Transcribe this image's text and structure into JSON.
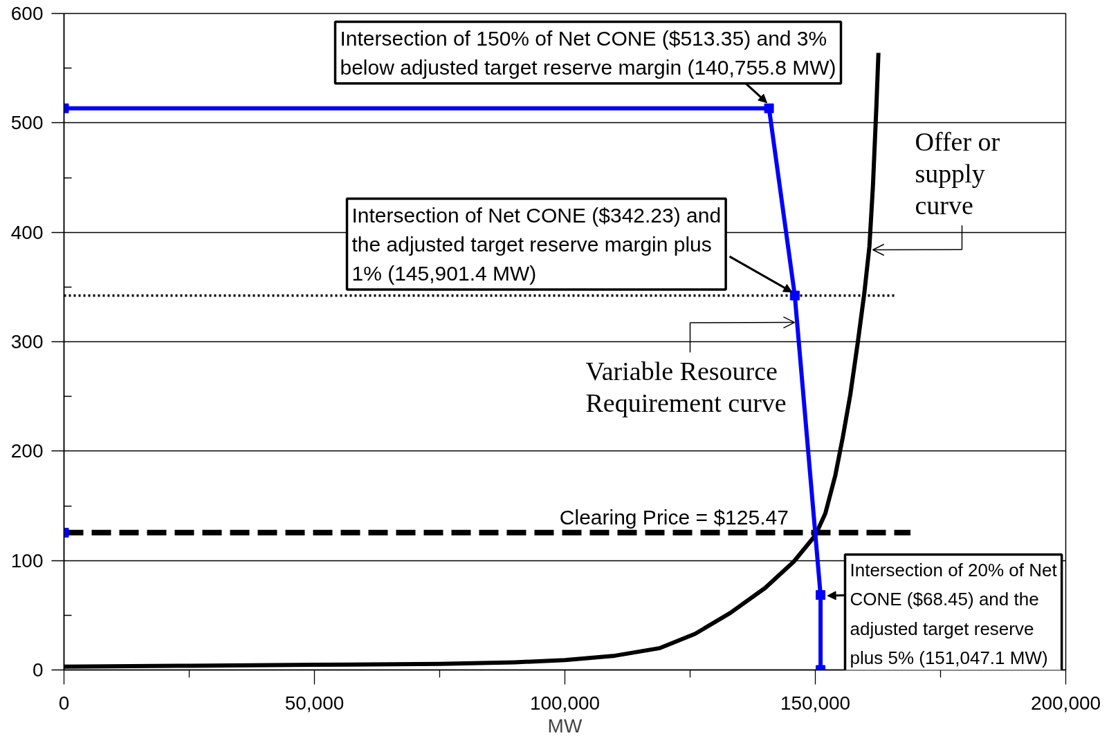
{
  "chart_data": {
    "type": "line",
    "xlabel": "MW",
    "xlim": [
      0,
      200000
    ],
    "xticks": [
      0,
      {
        "value": 25000,
        "label": null
      },
      {
        "value": 50000,
        "label": "50,000"
      },
      {
        "value": 75000,
        "label": null
      },
      {
        "value": 100000,
        "label": "100,000"
      },
      {
        "value": 125000,
        "label": null
      },
      {
        "value": 150000,
        "label": "150,000"
      },
      {
        "value": 175000,
        "label": null
      },
      {
        "value": 200000,
        "label": "200,000"
      }
    ],
    "ylim": [
      0,
      600
    ],
    "yticks": [
      0,
      {
        "value": 50,
        "label": null
      },
      100,
      {
        "value": 150,
        "label": null
      },
      200,
      {
        "value": 250,
        "label": null
      },
      300,
      {
        "value": 350,
        "label": null
      },
      400,
      {
        "value": 450,
        "label": null
      },
      500,
      {
        "value": 550,
        "label": null
      },
      600
    ],
    "grid": "y",
    "series": [
      {
        "color": "#000000",
        "line_style": "dotted",
        "x": [
          0,
          166000
        ],
        "values": [
          342.23,
          342.23
        ]
      },
      {
        "color": "#000000",
        "line_style": "dashed",
        "x": [
          0,
          169000
        ],
        "values": [
          125.47,
          125.47
        ]
      },
      {
        "color": "#000000",
        "x": [
          0,
          25000,
          50000,
          75000,
          90000,
          100000,
          110000,
          119000,
          126000,
          133000,
          140000,
          145700,
          150000,
          152000,
          154000,
          155500,
          157000,
          158500,
          159800,
          160800,
          161500,
          162200,
          162600
        ],
        "values": [
          3,
          3.8,
          4.7,
          5.5,
          7,
          9,
          13,
          20,
          33,
          52,
          75,
          99,
          123,
          143,
          178,
          213,
          252,
          300,
          345,
          387,
          442,
          516,
          564
        ]
      },
      {
        "color": "#0000ff",
        "marker": "square",
        "x": [
          0,
          140755.8,
          145901.4,
          151047.1,
          151047.1
        ],
        "values": [
          513.35,
          513.35,
          342.23,
          68.45,
          0
        ]
      },
      {
        "type": "scatter",
        "color": "#0000ff",
        "marker": "square",
        "x": [
          0
        ],
        "values": [
          125.47
        ]
      }
    ],
    "annotations": [
      {
        "text": "Intersection of 150% of Net CONE ($513.35) and 3%\nbelow adjusted target reserve margin (140,755.8 MW)",
        "x": 140755.8,
        "y": 513.35
      },
      {
        "text": "Intersection of Net CONE ($342.23) and\nthe adjusted target reserve margin plus\n1% (145,901.4 MW)",
        "x": 145901.4,
        "y": 342.23
      },
      {
        "text": "Intersection of 20% of Net\nCONE ($68.45) and the\nadjusted target reserve\nplus 5% (151,047.1 MW)",
        "x": 151047.1,
        "y": 68.45
      },
      {
        "text": "Clearing Price = $125.47",
        "x": 121800,
        "y": 125.47
      },
      {
        "text": "Offer or\nsupply\ncurve",
        "x": 160800,
        "y": 384
      },
      {
        "text": "Variable Resource\nRequirement curve",
        "x": 146400,
        "y": 317
      }
    ]
  }
}
